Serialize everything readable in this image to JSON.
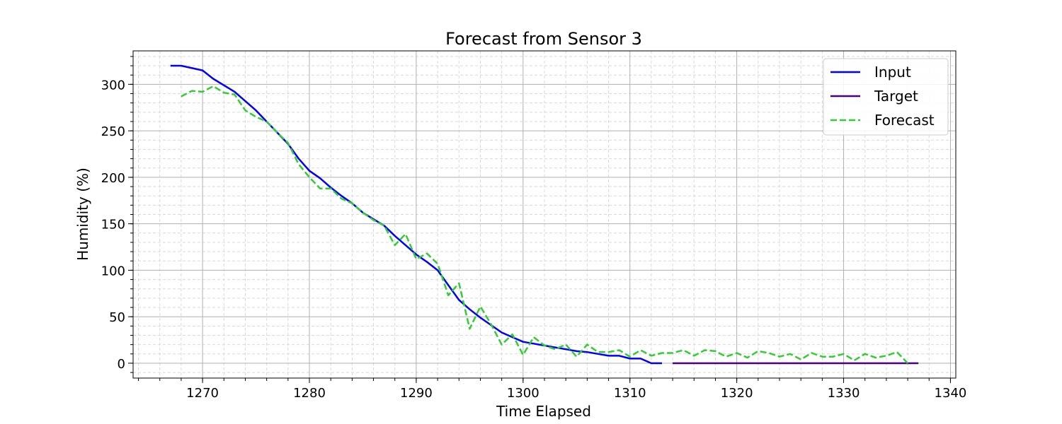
{
  "chart_data": {
    "type": "line",
    "title": "Forecast from Sensor 3",
    "xlabel": "Time Elapsed",
    "ylabel": "Humidity (%)",
    "xlim": [
      1263.5,
      1340.5
    ],
    "ylim": [
      -16,
      336
    ],
    "x_ticks": [
      1270,
      1280,
      1290,
      1300,
      1310,
      1320,
      1330,
      1340
    ],
    "y_ticks": [
      0,
      50,
      100,
      150,
      200,
      250,
      300
    ],
    "grid": true,
    "legend_position": "top-right",
    "series": [
      {
        "name": "Input",
        "color": "#0000ff",
        "style": "solid",
        "x": [
          1267,
          1268,
          1270,
          1271,
          1273,
          1275,
          1277,
          1278,
          1279,
          1280,
          1281,
          1282,
          1283,
          1284,
          1285,
          1287,
          1288,
          1289,
          1290,
          1291,
          1292,
          1293,
          1294,
          1295,
          1296,
          1297,
          1298,
          1299,
          1300,
          1301,
          1302,
          1303,
          1304,
          1305,
          1306,
          1307,
          1308,
          1309,
          1310,
          1311,
          1312,
          1313
        ],
        "y": [
          320,
          320,
          315,
          306,
          292,
          272,
          248,
          236,
          220,
          207,
          199,
          189,
          180,
          172,
          162,
          148,
          137,
          127,
          117,
          109,
          100,
          84,
          68,
          58,
          49,
          41,
          33,
          28,
          23,
          21,
          19,
          17,
          15,
          13,
          12,
          10,
          8,
          8,
          5,
          5,
          0,
          0
        ]
      },
      {
        "name": "Target",
        "color": "#4b0082",
        "style": "solid",
        "x": [
          1314,
          1337
        ],
        "y": [
          0,
          0
        ]
      },
      {
        "name": "Forecast",
        "color": "#32cd32",
        "style": "dashed",
        "x": [
          1268,
          1269,
          1270,
          1271,
          1272,
          1273,
          1274,
          1275,
          1276,
          1277,
          1278,
          1279,
          1280,
          1281,
          1282,
          1283,
          1284,
          1285,
          1286,
          1287,
          1288,
          1289,
          1290,
          1291,
          1292,
          1293,
          1294,
          1295,
          1296,
          1297,
          1298,
          1299,
          1300,
          1301,
          1302,
          1303,
          1304,
          1305,
          1306,
          1307,
          1308,
          1309,
          1310,
          1311,
          1312,
          1313,
          1314,
          1315,
          1316,
          1317,
          1318,
          1319,
          1320,
          1321,
          1322,
          1323,
          1324,
          1325,
          1326,
          1327,
          1328,
          1329,
          1330,
          1331,
          1332,
          1333,
          1334,
          1335,
          1336
        ],
        "y": [
          287,
          293,
          292,
          298,
          291,
          289,
          272,
          265,
          260,
          248,
          237,
          214,
          200,
          188,
          188,
          177,
          172,
          162,
          154,
          148,
          127,
          139,
          112,
          118,
          107,
          73,
          86,
          37,
          61,
          42,
          20,
          31,
          9,
          28,
          19,
          15,
          20,
          7,
          20,
          12,
          12,
          14,
          7,
          14,
          8,
          11,
          11,
          14,
          8,
          14,
          13,
          7,
          11,
          6,
          13,
          11,
          7,
          10,
          4,
          11,
          7,
          7,
          10,
          3,
          10,
          6,
          8,
          12,
          0
        ]
      }
    ]
  }
}
